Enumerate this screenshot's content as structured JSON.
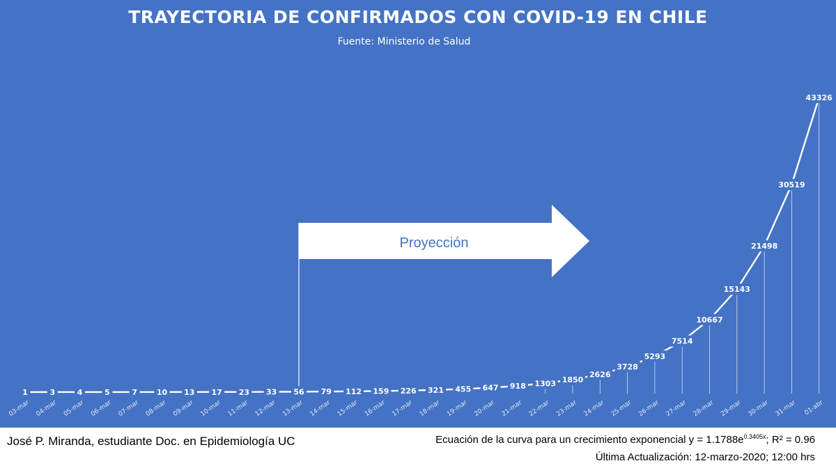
{
  "chart_data": {
    "type": "line",
    "title": "TRAYECTORIA DE CONFIRMADOS CON COVID-19 EN CHILE",
    "subtitle": "Fuente: Ministerio de Salud",
    "categories": [
      "03-mar",
      "04-mar",
      "05-mar",
      "06-mar",
      "07-mar",
      "08-mar",
      "09-mar",
      "10-mar",
      "11-mar",
      "12-mar",
      "13-mar",
      "14-mar",
      "15-mar",
      "16-mar",
      "17-mar",
      "18-mar",
      "19-mar",
      "20-mar",
      "21-mar",
      "22-mar",
      "23-mar",
      "24-mar",
      "25-mar",
      "26-mar",
      "27-mar",
      "28-mar",
      "29-mar",
      "30-mar",
      "31-mar",
      "01-abr"
    ],
    "values": [
      1,
      3,
      4,
      5,
      7,
      10,
      13,
      17,
      23,
      33,
      56,
      79,
      112,
      159,
      226,
      321,
      455,
      647,
      918,
      1303,
      1850,
      2626,
      3728,
      5293,
      7514,
      10667,
      15143,
      21498,
      30519,
      43326
    ],
    "ylim": [
      0,
      45000
    ],
    "grid": false,
    "annotation": {
      "text": "Proyección",
      "start_category": "13-mar"
    }
  },
  "footer": {
    "author": "José P. Miranda, estudiante Doc. en Epidemiología UC",
    "equation_prefix": "Ecuación de la curva para un crecimiento exponencial y = 1.1788e",
    "equation_exponent": "0.3405x",
    "equation_suffix": "; R² = 0.96",
    "updated": "Última Actualización: 12-marzo-2020; 12:00 hrs"
  },
  "colors": {
    "background": "#4472c4",
    "line": "#ffffff",
    "text": "#ffffff"
  }
}
